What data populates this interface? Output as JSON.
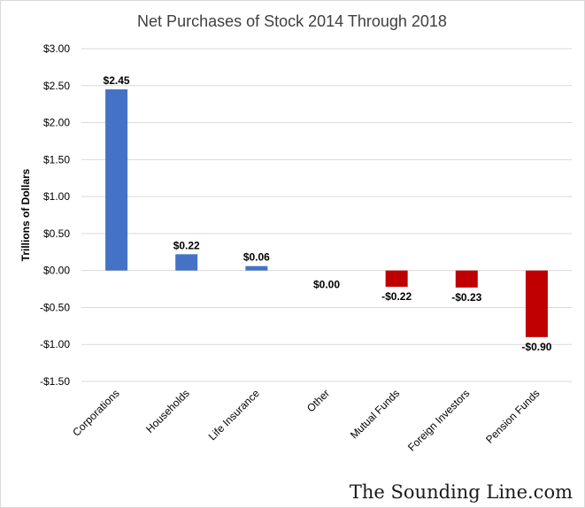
{
  "chart_data": {
    "type": "bar",
    "title": "Net Purchases of Stock 2014 Through 2018",
    "ylabel": "Trillions of Dollars",
    "xlabel": "",
    "ylim": [
      -1.5,
      3.0
    ],
    "yticks": [
      3.0,
      2.5,
      2.0,
      1.5,
      1.0,
      0.5,
      0.0,
      -0.5,
      -1.0,
      -1.5
    ],
    "ytick_labels": [
      "$3.00",
      "$2.50",
      "$2.00",
      "$1.50",
      "$1.00",
      "$0.50",
      "$0.00",
      "-$0.50",
      "-$1.00",
      "-$1.50"
    ],
    "grid": true,
    "categories": [
      "Corporations",
      "Households",
      "Life Insurance",
      "Other",
      "Mutual Funds",
      "Foreign Investors",
      "Pension Funds"
    ],
    "values": [
      2.45,
      0.22,
      0.06,
      0.0,
      -0.22,
      -0.23,
      -0.9
    ],
    "data_labels": [
      "$2.45",
      "$0.22",
      "$0.06",
      "$0.00",
      "-$0.22",
      "-$0.23",
      "-$0.90"
    ],
    "colors": {
      "positive": "#4472c4",
      "negative": "#c00000",
      "grid": "#d9d9d9"
    }
  },
  "credit": "The Sounding Line.com"
}
